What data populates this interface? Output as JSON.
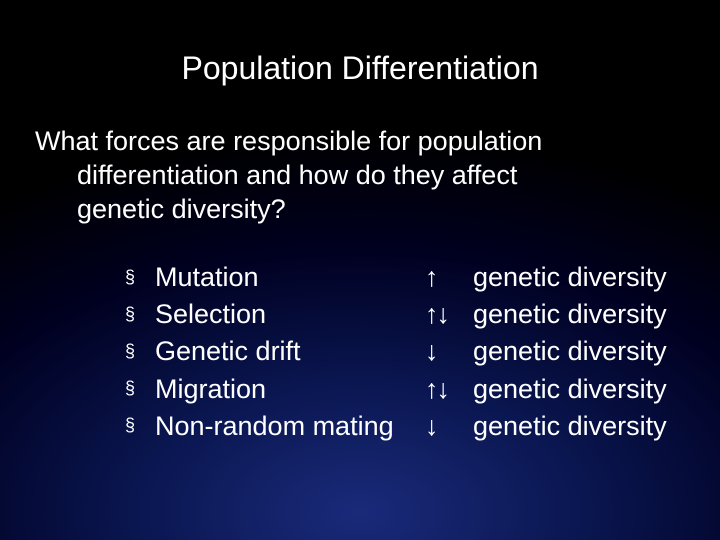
{
  "slide": {
    "title": "Population Differentiation",
    "question_line1": "What forces are responsible for population",
    "question_line2": "differentiation and how do they affect",
    "question_line3": "genetic diversity?",
    "bullet_char": "§",
    "forces": [
      {
        "name": "Mutation",
        "arrows": "↑",
        "effect": "genetic diversity"
      },
      {
        "name": "Selection",
        "arrows": "↑↓",
        "effect": "genetic diversity"
      },
      {
        "name": "Genetic drift",
        "arrows": "↓",
        "effect": "genetic diversity"
      },
      {
        "name": "Migration",
        "arrows": "↑↓",
        "effect": "genetic diversity"
      },
      {
        "name": "Non-random mating",
        "arrows": "↓",
        "effect": "genetic diversity"
      }
    ],
    "colors": {
      "text": "#ffffff",
      "bg_center": "#1a2a7a",
      "bg_outer": "#000000"
    },
    "typography": {
      "title_fontsize": 32,
      "body_fontsize": 27,
      "font_family": "Arial"
    }
  }
}
